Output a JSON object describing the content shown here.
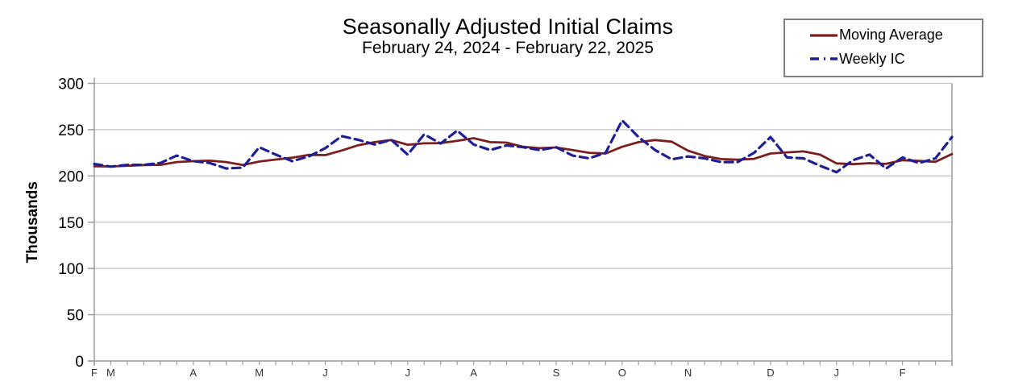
{
  "title": "Seasonally Adjusted Initial Claims",
  "subtitle": "February 24, 2024 - February 22, 2025",
  "legend": {
    "items": [
      {
        "label": "Moving Average",
        "color": "#7b1e1e",
        "style": "solid"
      },
      {
        "label": "Weekly IC",
        "color": "#1e1e96",
        "style": "dashed"
      }
    ]
  },
  "colors": {
    "gridline": "#c6c6c6",
    "axis": "#9b9b9b",
    "tick_label": "#000000",
    "month_label": "#333333",
    "background": "#ffffff"
  },
  "chart_data": {
    "type": "line",
    "title": "Seasonally Adjusted Initial Claims",
    "subtitle": "February 24, 2024 - February 22, 2025",
    "ylabel": "Thousands",
    "ylim": [
      0,
      300
    ],
    "yticks": [
      0,
      50,
      100,
      150,
      200,
      250,
      300
    ],
    "x_unit": "week",
    "weeks": 53,
    "grid": true,
    "legend_position": "top-right",
    "x_month_labels": [
      {
        "label": "F",
        "week": 0
      },
      {
        "label": "M",
        "week": 1
      },
      {
        "label": "A",
        "week": 6
      },
      {
        "label": "M",
        "week": 10
      },
      {
        "label": "J",
        "week": 14
      },
      {
        "label": "J",
        "week": 19
      },
      {
        "label": "A",
        "week": 23
      },
      {
        "label": "S",
        "week": 28
      },
      {
        "label": "O",
        "week": 32
      },
      {
        "label": "N",
        "week": 36
      },
      {
        "label": "D",
        "week": 41
      },
      {
        "label": "J",
        "week": 45
      },
      {
        "label": "F",
        "week": 49
      }
    ],
    "series": [
      {
        "name": "Moving Average",
        "color": "#7b1e1e",
        "stroke_width": 2.8,
        "dash": null,
        "values": [
          210.5,
          210.25,
          211,
          211.75,
          212,
          215,
          216,
          216.5,
          215,
          211.75,
          215.5,
          217.75,
          219.75,
          222.75,
          222.5,
          227.5,
          233.25,
          236.5,
          238.75,
          233.75,
          235.25,
          235.5,
          238,
          240.75,
          236.5,
          236,
          231.5,
          230,
          230.75,
          228,
          225,
          224.25,
          231.5,
          236.5,
          238.75,
          237,
          227.25,
          221.5,
          218.25,
          217.5,
          218.5,
          224.25,
          225.5,
          226.5,
          223,
          213.5,
          212.75,
          213.75,
          213,
          217,
          216.25,
          215.25,
          223.75
        ]
      },
      {
        "name": "Weekly IC",
        "color": "#1e1e96",
        "stroke_width": 3.2,
        "dash": "10 6",
        "values": [
          213,
          210,
          212,
          212,
          214,
          222,
          216,
          214,
          208,
          209,
          231,
          223,
          216,
          221,
          230,
          243,
          239,
          234,
          239,
          223,
          245,
          235,
          249,
          234,
          228,
          233,
          231,
          228,
          231,
          222,
          219,
          225,
          260,
          242,
          228,
          218,
          221,
          219,
          215,
          215,
          225,
          242,
          220,
          219,
          211,
          204,
          217,
          223,
          208,
          220,
          214,
          219,
          242
        ]
      }
    ]
  }
}
